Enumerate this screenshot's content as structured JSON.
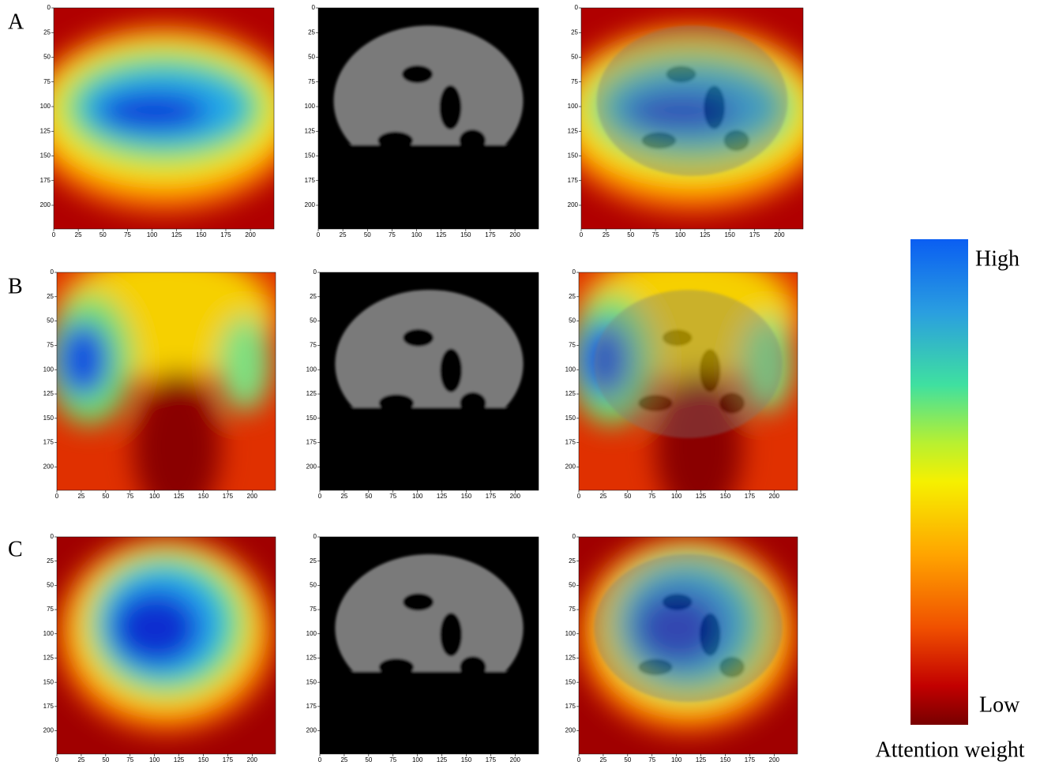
{
  "rows": [
    {
      "label": "A"
    },
    {
      "label": "B"
    },
    {
      "label": "C"
    }
  ],
  "axis": {
    "xlim": [
      0,
      224
    ],
    "ylim": [
      0,
      224
    ],
    "xticks": [
      0,
      25,
      50,
      75,
      100,
      125,
      150,
      175,
      200
    ],
    "yticks": [
      0,
      25,
      50,
      75,
      100,
      125,
      150,
      175,
      200
    ]
  },
  "colorbar": {
    "high": "High",
    "low": "Low",
    "title": "Attention weight"
  }
}
